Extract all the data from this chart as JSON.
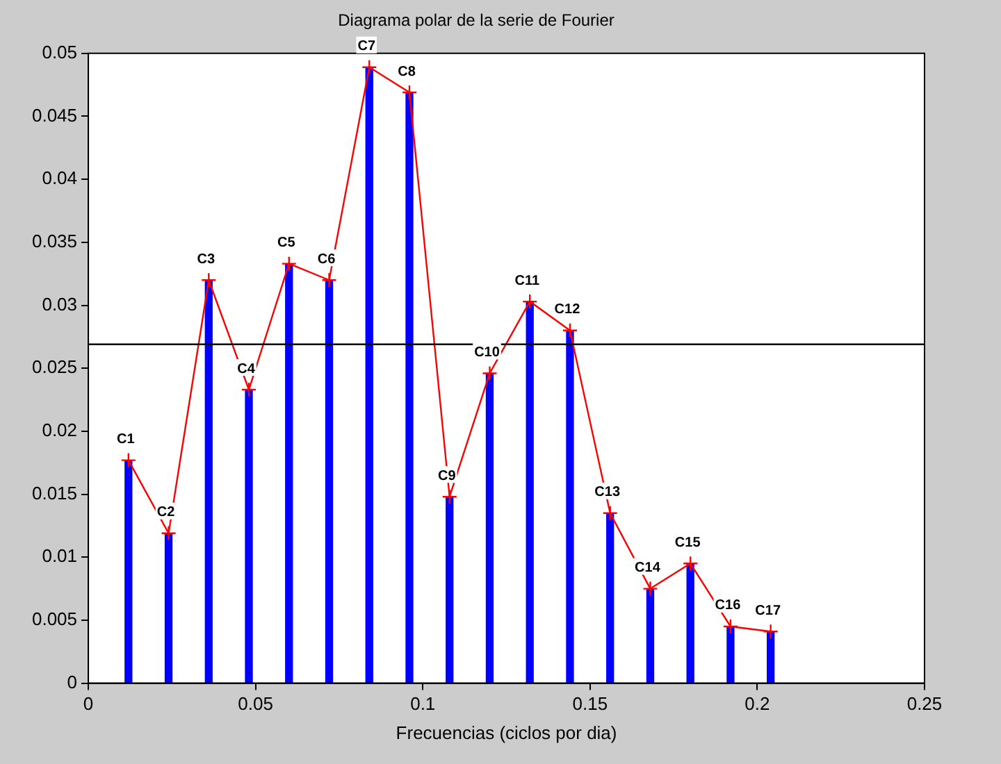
{
  "chart_data": {
    "type": "bar",
    "title": "Diagrama polar de la serie de Fourier",
    "xlabel": "Frecuencias (ciclos por dia)",
    "x": [
      0.012,
      0.024,
      0.036,
      0.048,
      0.06,
      0.072,
      0.084,
      0.096,
      0.108,
      0.12,
      0.132,
      0.144,
      0.156,
      0.168,
      0.18,
      0.192,
      0.204
    ],
    "series": [
      {
        "color": "#0000ff",
        "values": [
          0.0177,
          0.0119,
          0.032,
          0.0233,
          0.0333,
          0.032,
          0.0489,
          0.0469,
          0.0148,
          0.0246,
          0.0303,
          0.028,
          0.0135,
          0.0075,
          0.0095,
          0.0045,
          0.0041
        ]
      },
      {
        "type": "line",
        "color": "#ff0000",
        "marker": "cross",
        "values": [
          0.0177,
          0.0119,
          0.032,
          0.0233,
          0.0333,
          0.032,
          0.0489,
          0.0469,
          0.0148,
          0.0246,
          0.0303,
          0.028,
          0.0135,
          0.0075,
          0.0095,
          0.0045,
          0.0041
        ]
      }
    ],
    "xlim": [
      0,
      0.25
    ],
    "xticks": [
      0,
      0.05,
      0.1,
      0.15,
      0.2,
      0.25
    ],
    "ylim": [
      0,
      0.05
    ],
    "yticks": [
      0,
      0.005,
      0.01,
      0.015,
      0.02,
      0.025,
      0.03,
      0.035,
      0.04,
      0.045,
      0.05
    ],
    "ref_lines": [
      {
        "axis": "y",
        "value": 0.0269,
        "color": "#000000"
      }
    ],
    "annotations": [
      {
        "text": "C1",
        "x": 0.012,
        "y": 0.0177
      },
      {
        "text": "C2",
        "x": 0.024,
        "y": 0.0119
      },
      {
        "text": "C3",
        "x": 0.036,
        "y": 0.032
      },
      {
        "text": "C4",
        "x": 0.048,
        "y": 0.0233
      },
      {
        "text": "C5",
        "x": 0.06,
        "y": 0.0333
      },
      {
        "text": "C6",
        "x": 0.072,
        "y": 0.032
      },
      {
        "text": "C7",
        "x": 0.084,
        "y": 0.0489
      },
      {
        "text": "C8",
        "x": 0.096,
        "y": 0.0469
      },
      {
        "text": "C9",
        "x": 0.108,
        "y": 0.0148
      },
      {
        "text": "C10",
        "x": 0.12,
        "y": 0.0246
      },
      {
        "text": "C11",
        "x": 0.132,
        "y": 0.0303
      },
      {
        "text": "C12",
        "x": 0.144,
        "y": 0.028
      },
      {
        "text": "C13",
        "x": 0.156,
        "y": 0.0135
      },
      {
        "text": "C14",
        "x": 0.168,
        "y": 0.0075
      },
      {
        "text": "C15",
        "x": 0.18,
        "y": 0.0095
      },
      {
        "text": "C16",
        "x": 0.192,
        "y": 0.0045
      },
      {
        "text": "C17",
        "x": 0.204,
        "y": 0.0041
      }
    ],
    "grid": false,
    "legend": false
  }
}
